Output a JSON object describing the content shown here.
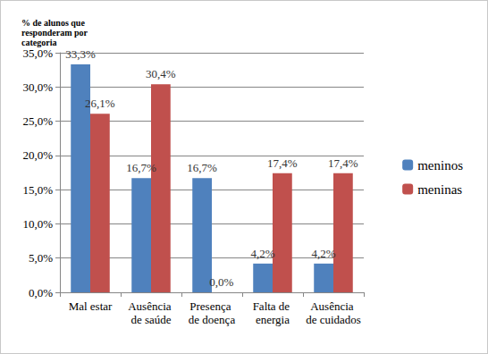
{
  "chart_data": {
    "type": "bar",
    "title": "% de alunos que responderam por categoria",
    "categories": [
      "Mal estar",
      "Ausência de saúde",
      "Presença de doença",
      "Falta de energia",
      "Ausência de cuidados"
    ],
    "series": [
      {
        "name": "meninos",
        "color": "#4f81bd",
        "values": [
          33.3,
          16.7,
          16.7,
          4.2,
          4.2
        ],
        "value_labels": [
          "33,3%",
          "16,7%",
          "16,7%",
          "4,2%",
          "4,2%"
        ]
      },
      {
        "name": "meninas",
        "color": "#c0504d",
        "values": [
          26.1,
          30.4,
          0.0,
          17.4,
          17.4
        ],
        "value_labels": [
          "26,1%",
          "30,4%",
          "0,0%",
          "17,4%",
          "17,4%"
        ]
      }
    ],
    "ylim": [
      0,
      35
    ],
    "yticks": [
      {
        "value": 0,
        "label": "0,0%"
      },
      {
        "value": 5,
        "label": "5,0%"
      },
      {
        "value": 10,
        "label": "10,0%"
      },
      {
        "value": 15,
        "label": "15,0%"
      },
      {
        "value": 20,
        "label": "20,0%"
      },
      {
        "value": 25,
        "label": "25,0%"
      },
      {
        "value": 30,
        "label": "30,0%"
      },
      {
        "value": 35,
        "label": "35,0%"
      }
    ],
    "grid": true,
    "legend": "right",
    "data_labels": true
  }
}
